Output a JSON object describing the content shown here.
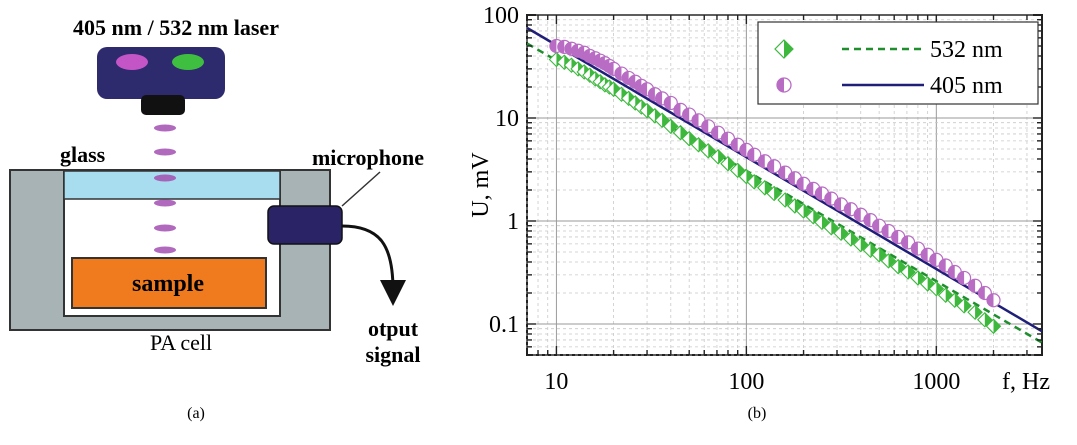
{
  "figure_a": {
    "laser_label": "405 nm / 532 nm laser",
    "glass_label": "glass",
    "microphone_label": "microphone",
    "sample_label": "sample",
    "cell_label": "PA cell",
    "output_label_line1": "otput",
    "output_label_line2": "signal",
    "caption": "(a)",
    "colors": {
      "laser_body": "#2e2a6e",
      "laser_tip": "#111111",
      "spot_405": "#c455c6",
      "spot_532": "#3fbf3f",
      "beam": "#a24fb0",
      "glass": "#a8dcef",
      "sample": "#f07a1e",
      "cell": "#a7b3b4",
      "microphone": "#2a2466"
    }
  },
  "figure_b": {
    "caption": "(b)",
    "x_tick_labels": [
      "10",
      "100",
      "1000"
    ],
    "x_unit_label": "f, Hz",
    "y_tick_labels": [
      "100",
      "10",
      "1",
      "0.1"
    ],
    "y_axis_label": "U, mV",
    "legend": [
      {
        "text": "532 nm",
        "marker": "half-diamond",
        "line": "dashed"
      },
      {
        "text": "405 nm",
        "marker": "half-circle",
        "line": "solid"
      }
    ]
  },
  "chart_data": {
    "type": "scatter",
    "x_scale": "log",
    "y_scale": "log",
    "xlim": [
      7,
      3600
    ],
    "ylim": [
      0.05,
      100
    ],
    "xlabel": "f, Hz",
    "ylabel": "U, mV",
    "grid": true,
    "legend_position": "top-right",
    "series": [
      {
        "name": "532 nm",
        "color": "#3db83d",
        "marker": "half-diamond",
        "points": [
          [
            10,
            37
          ],
          [
            11,
            34.8
          ],
          [
            12,
            32.5
          ],
          [
            13,
            30
          ],
          [
            14,
            28
          ],
          [
            15,
            26
          ],
          [
            16,
            24
          ],
          [
            17,
            22.5
          ],
          [
            18,
            21
          ],
          [
            19,
            20
          ],
          [
            20,
            19
          ],
          [
            22,
            17
          ],
          [
            24,
            15.5
          ],
          [
            26,
            14
          ],
          [
            28,
            12.8
          ],
          [
            30,
            11.8
          ],
          [
            33,
            10.5
          ],
          [
            36,
            9.5
          ],
          [
            40,
            8.3
          ],
          [
            45,
            7.2
          ],
          [
            50,
            6.3
          ],
          [
            56,
            5.5
          ],
          [
            63,
            4.8
          ],
          [
            71,
            4.2
          ],
          [
            80,
            3.6
          ],
          [
            90,
            3.1
          ],
          [
            100,
            2.7
          ],
          [
            110,
            2.4
          ],
          [
            125,
            2.1
          ],
          [
            140,
            1.85
          ],
          [
            160,
            1.6
          ],
          [
            180,
            1.4
          ],
          [
            200,
            1.25
          ],
          [
            225,
            1.1
          ],
          [
            250,
            0.97
          ],
          [
            280,
            0.86
          ],
          [
            315,
            0.76
          ],
          [
            355,
            0.67
          ],
          [
            400,
            0.59
          ],
          [
            450,
            0.52
          ],
          [
            500,
            0.47
          ],
          [
            560,
            0.41
          ],
          [
            630,
            0.36
          ],
          [
            710,
            0.32
          ],
          [
            800,
            0.28
          ],
          [
            900,
            0.245
          ],
          [
            1000,
            0.22
          ],
          [
            1120,
            0.19
          ],
          [
            1250,
            0.17
          ],
          [
            1400,
            0.15
          ],
          [
            1600,
            0.13
          ],
          [
            1800,
            0.11
          ],
          [
            2000,
            0.095
          ]
        ],
        "fit": {
          "style": "dashed",
          "color": "#1f8f2e",
          "x": [
            7,
            3600
          ],
          "y": [
            53,
            0.066
          ]
        }
      },
      {
        "name": "405 nm",
        "color": "#b86cc4",
        "marker": "half-circle",
        "points": [
          [
            10,
            50
          ],
          [
            11,
            49
          ],
          [
            12,
            47
          ],
          [
            13,
            45
          ],
          [
            14,
            43
          ],
          [
            15,
            40
          ],
          [
            16,
            38
          ],
          [
            17,
            36
          ],
          [
            18,
            34
          ],
          [
            19,
            32
          ],
          [
            20,
            30
          ],
          [
            22,
            27
          ],
          [
            24,
            24.5
          ],
          [
            26,
            22.5
          ],
          [
            28,
            20.5
          ],
          [
            30,
            19
          ],
          [
            33,
            17
          ],
          [
            36,
            15.5
          ],
          [
            40,
            14
          ],
          [
            45,
            12
          ],
          [
            50,
            10.8
          ],
          [
            56,
            9.5
          ],
          [
            63,
            8.3
          ],
          [
            71,
            7.2
          ],
          [
            80,
            6.3
          ],
          [
            90,
            5.5
          ],
          [
            100,
            4.9
          ],
          [
            110,
            4.4
          ],
          [
            125,
            3.8
          ],
          [
            140,
            3.4
          ],
          [
            160,
            2.95
          ],
          [
            180,
            2.6
          ],
          [
            200,
            2.3
          ],
          [
            225,
            2.05
          ],
          [
            250,
            1.85
          ],
          [
            280,
            1.65
          ],
          [
            315,
            1.45
          ],
          [
            355,
            1.3
          ],
          [
            400,
            1.15
          ],
          [
            450,
            1.02
          ],
          [
            500,
            0.9
          ],
          [
            560,
            0.8
          ],
          [
            630,
            0.7
          ],
          [
            710,
            0.62
          ],
          [
            800,
            0.54
          ],
          [
            900,
            0.47
          ],
          [
            1000,
            0.42
          ],
          [
            1120,
            0.37
          ],
          [
            1250,
            0.32
          ],
          [
            1400,
            0.28
          ],
          [
            1600,
            0.235
          ],
          [
            1800,
            0.2
          ],
          [
            2000,
            0.17
          ]
        ],
        "fit": {
          "style": "solid",
          "color": "#1f1f7a",
          "x": [
            7,
            3600
          ],
          "y": [
            75,
            0.085
          ]
        }
      }
    ]
  }
}
